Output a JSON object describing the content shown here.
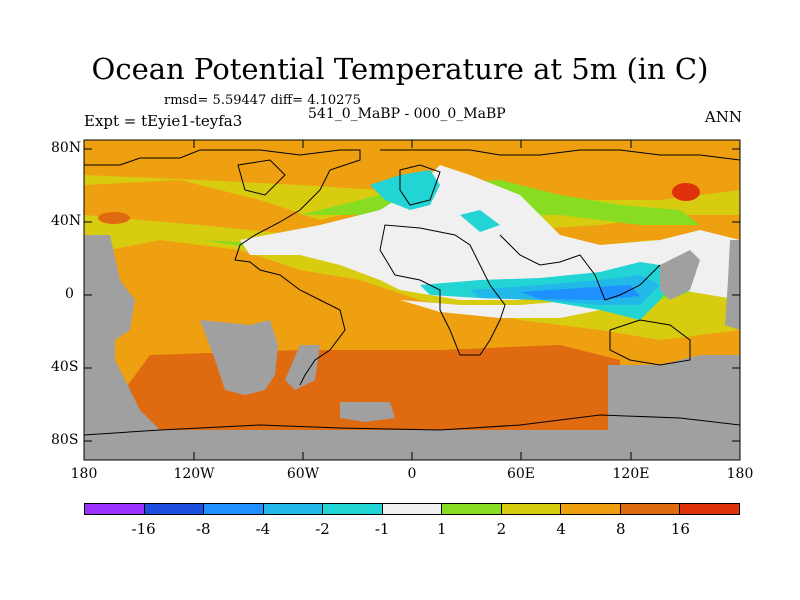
{
  "figure": {
    "title": "Ocean Potential Temperature at 5m (in C)",
    "stats": "rmsd= 5.59447 diff= 4.10275",
    "subtitle": "541_0_MaBP - 000_0_MaBP",
    "expt": "Expt = tEyie1-teyfa3",
    "season": "ANN"
  },
  "axes": {
    "ylabels": [
      "80N",
      "40N",
      "0",
      "40S",
      "80S"
    ],
    "xlabels": [
      "180",
      "120W",
      "60W",
      "0",
      "60E",
      "120E",
      "180"
    ]
  },
  "colorbar": {
    "colors": [
      "#9b30ff",
      "#1c4fe0",
      "#1e90ff",
      "#22b8e8",
      "#22d4d4",
      "#f0f0f0",
      "#88dd22",
      "#d8cc10",
      "#eea010",
      "#e06a10",
      "#e0320a"
    ],
    "labels": [
      "-16",
      "-8",
      "-4",
      "-2",
      "-1",
      "1",
      "2",
      "4",
      "8",
      "16"
    ]
  },
  "colors": {
    "land": "#a0a0a0",
    "warm_orange": "#eea010",
    "dark_orange": "#e06a10",
    "yellow": "#d8cc10",
    "green": "#88dd22",
    "white": "#f0f0f0",
    "cyan": "#22d4d4",
    "light_blue": "#22b8e8",
    "blue": "#1e90ff",
    "red": "#e0320a"
  }
}
